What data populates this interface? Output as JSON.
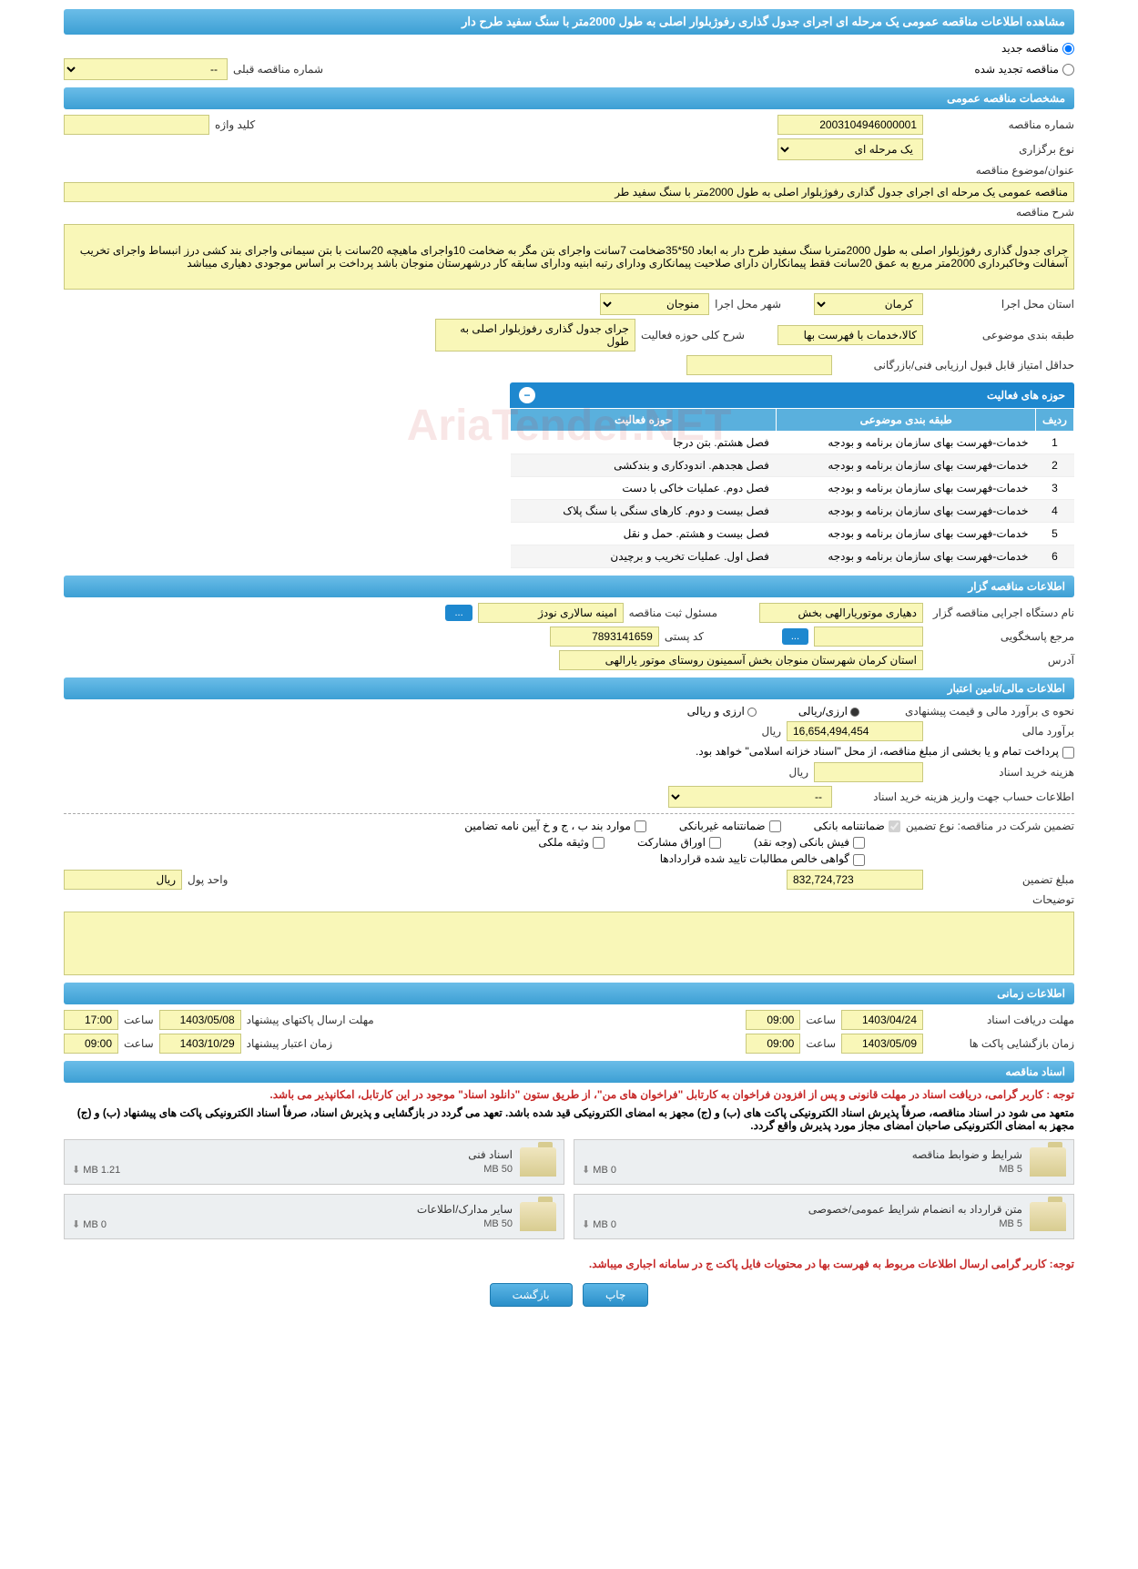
{
  "title": "مشاهده اطلاعات مناقصه عمومی یک مرحله ای اجرای جدول گذاری رفوژبلوار اصلی به طول 2000متر با سنگ سفید طرح دار",
  "tender_type_options": {
    "new_label": "مناقصه جدید",
    "renewed_label": "مناقصه تجدید شده",
    "prev_label": "شماره مناقصه قبلی",
    "prev_value": "--"
  },
  "sections": {
    "general": "مشخصات مناقصه عمومی",
    "tenderer": "اطلاعات مناقصه گزار",
    "financial": "اطلاعات مالی/تامین اعتبار",
    "timing": "اطلاعات زمانی",
    "documents": "اسناد مناقصه"
  },
  "general": {
    "number_label": "شماره مناقصه",
    "number": "2003104946000001",
    "keyword_label": "کلید واژه",
    "keyword": "",
    "holding_type_label": "نوع برگزاری",
    "holding_type": "یک مرحله ای",
    "subject_label": "عنوان/موضوع مناقصه",
    "subject": "مناقصه عمومی یک مرحله ای اجرای جدول گذاری رفوژبلوار اصلی به طول 2000متر با سنگ سفید طر",
    "desc_label": "شرح مناقصه",
    "desc": "جرای جدول گذاری رفوژبلوار اصلی به طول 2000متربا سنگ سفید طرح دار به ابعاد 50*35ضخامت 7سانت واجرای بتن مگر به ضخامت 10واجرای ماهیچه 20سانت با بتن سیمانی واجرای بند کشی درز انبساط واجرای تخریب آسفالت وخاکبرداری 2000متر مربع به عمق 20سانت  فقط پیمانکاران دارای صلاحیت پیمانکاری ودارای رتبه ابنیه ودارای سابقه کار درشهرستان منوجان باشد پرداخت بر اساس موجودی دهیاری میباشد",
    "province_label": "استان محل اجرا",
    "province": "کرمان",
    "city_label": "شهر محل اجرا",
    "city": "منوجان",
    "category_label": "طبقه بندی موضوعی",
    "category": "کالا،خدمات با فهرست بها",
    "activity_desc_label": "شرح کلی حوزه فعالیت",
    "activity_desc": "جرای جدول گذاری رفوژبلوار اصلی به طول",
    "min_score_label": "حداقل امتیاز قابل قبول ارزیابی فنی/بازرگانی",
    "min_score": ""
  },
  "activities_table": {
    "title": "حوزه های فعالیت",
    "headers": {
      "row": "ردیف",
      "category": "طبقه بندی موضوعی",
      "field": "حوزه فعالیت"
    },
    "rows": [
      {
        "n": "1",
        "cat": "خدمات-فهرست بهای سازمان برنامه و بودجه",
        "field": "فصل هشتم. بتن درجا"
      },
      {
        "n": "2",
        "cat": "خدمات-فهرست بهای سازمان برنامه و بودجه",
        "field": "فصل هجدهم. اندودکاری و بندکشی"
      },
      {
        "n": "3",
        "cat": "خدمات-فهرست بهای سازمان برنامه و بودجه",
        "field": "فصل دوم. عملیات خاکی با دست"
      },
      {
        "n": "4",
        "cat": "خدمات-فهرست بهای سازمان برنامه و بودجه",
        "field": "فصل بیست و دوم. کارهای سنگی با سنگ پلاک"
      },
      {
        "n": "5",
        "cat": "خدمات-فهرست بهای سازمان برنامه و بودجه",
        "field": "فصل بیست و هشتم. حمل و نقل"
      },
      {
        "n": "6",
        "cat": "خدمات-فهرست بهای سازمان برنامه و بودجه",
        "field": "فصل اول. عملیات تخریب و برچیدن"
      }
    ]
  },
  "tenderer": {
    "org_label": "نام دستگاه اجرایی مناقصه گزار",
    "org": "دهیاری موتوریارالهی بخش",
    "responsible_label": "مسئول ثبت مناقصه",
    "responsible": "امینه سالاری نودژ",
    "reference_label": "مرجع پاسخگویی",
    "reference": "",
    "postcode_label": "کد پستی",
    "postcode": "7893141659",
    "address_label": "آدرس",
    "address": "استان کرمان شهرستان منوجان بخش آسمینون روستای موتور یارالهی"
  },
  "financial": {
    "method_label": "نحوه ی برآورد مالی و قیمت پیشنهادی",
    "rial_option": "ارزی/ریالی",
    "currency_option": "ارزی و ریالی",
    "estimate_label": "برآورد مالی",
    "estimate": "16,654,494,454",
    "unit_rial": "ریال",
    "payment_note": "پرداخت تمام و یا بخشی از مبلغ مناقصه، از محل \"اسناد خزانه اسلامی\" خواهد بود.",
    "purchase_cost_label": "هزینه خرید اسناد",
    "purchase_cost": "",
    "account_label": "اطلاعات حساب جهت واریز هزینه خرید اسناد",
    "account_value": "--",
    "guarantee_intro": "تضمین شرکت در مناقصه:   نوع تضمین",
    "g1": "ضمانتنامه بانکی",
    "g2": "ضمانتنامه غیربانکی",
    "g3": "موارد بند ب ، ج و خ آیین نامه تضامین",
    "g4": "فیش بانکی (وجه نقد)",
    "g5": "اوراق مشارکت",
    "g6": "وثیقه ملکی",
    "g7": "گواهی خالص مطالبات تایید شده قراردادها",
    "guarantee_amount_label": "مبلغ تضمین",
    "guarantee_amount": "832,724,723",
    "money_unit_label": "واحد پول",
    "money_unit": "ریال",
    "notes_label": "توضیحات",
    "notes": ""
  },
  "timing": {
    "doc_receive_label": "مهلت دریافت اسناد",
    "doc_receive_date": "1403/04/24",
    "doc_receive_time": "09:00",
    "packet_send_label": "مهلت ارسال پاکتهای پیشنهاد",
    "packet_send_date": "1403/05/08",
    "packet_send_time": "17:00",
    "packet_open_label": "زمان بازگشایی پاکت ها",
    "packet_open_date": "1403/05/09",
    "packet_open_time": "09:00",
    "bid_validity_label": "زمان اعتبار پیشنهاد",
    "bid_validity_date": "1403/10/29",
    "bid_validity_time": "09:00",
    "time_word": "ساعت"
  },
  "documents": {
    "note1": "توجه : کاربر گرامی، دریافت اسناد در مهلت قانونی و پس از افزودن فراخوان به کارتابل \"فراخوان های من\"، از طریق ستون \"دانلود اسناد\" موجود در این کارتابل، امکانپذیر می باشد.",
    "note2": "متعهد می شود در اسناد مناقصه، صرفاً پذیرش اسناد الکترونیکی پاکت های (ب) و (ج) مجهز به امضای الکترونیکی قید شده باشد. تعهد می گردد در بازگشایی و پذیرش اسناد، صرفاً اسناد الکترونیکی پاکت های پیشنهاد (ب) و (ج) مجهز به امضای الکترونیکی صاحبان امضای مجاز مورد پذیرش واقع گردد.",
    "note3": "توجه: کاربر گرامی ارسال اطلاعات مربوط به فهرست بها در محتویات فایل پاکت ج در سامانه اجباری میباشد.",
    "cards": [
      {
        "title": "شرایط و ضوابط مناقصه",
        "max": "5 MB",
        "size": "0 MB"
      },
      {
        "title": "اسناد فنی",
        "max": "50 MB",
        "size": "1.21 MB"
      },
      {
        "title": "متن قرارداد به انضمام شرایط عمومی/خصوصی",
        "max": "5 MB",
        "size": "0 MB"
      },
      {
        "title": "سایر مدارک/اطلاعات",
        "max": "50 MB",
        "size": "0 MB"
      }
    ]
  },
  "buttons": {
    "print": "چاپ",
    "back": "بازگشت",
    "more": "..."
  },
  "watermark": "AriaTender.NET"
}
